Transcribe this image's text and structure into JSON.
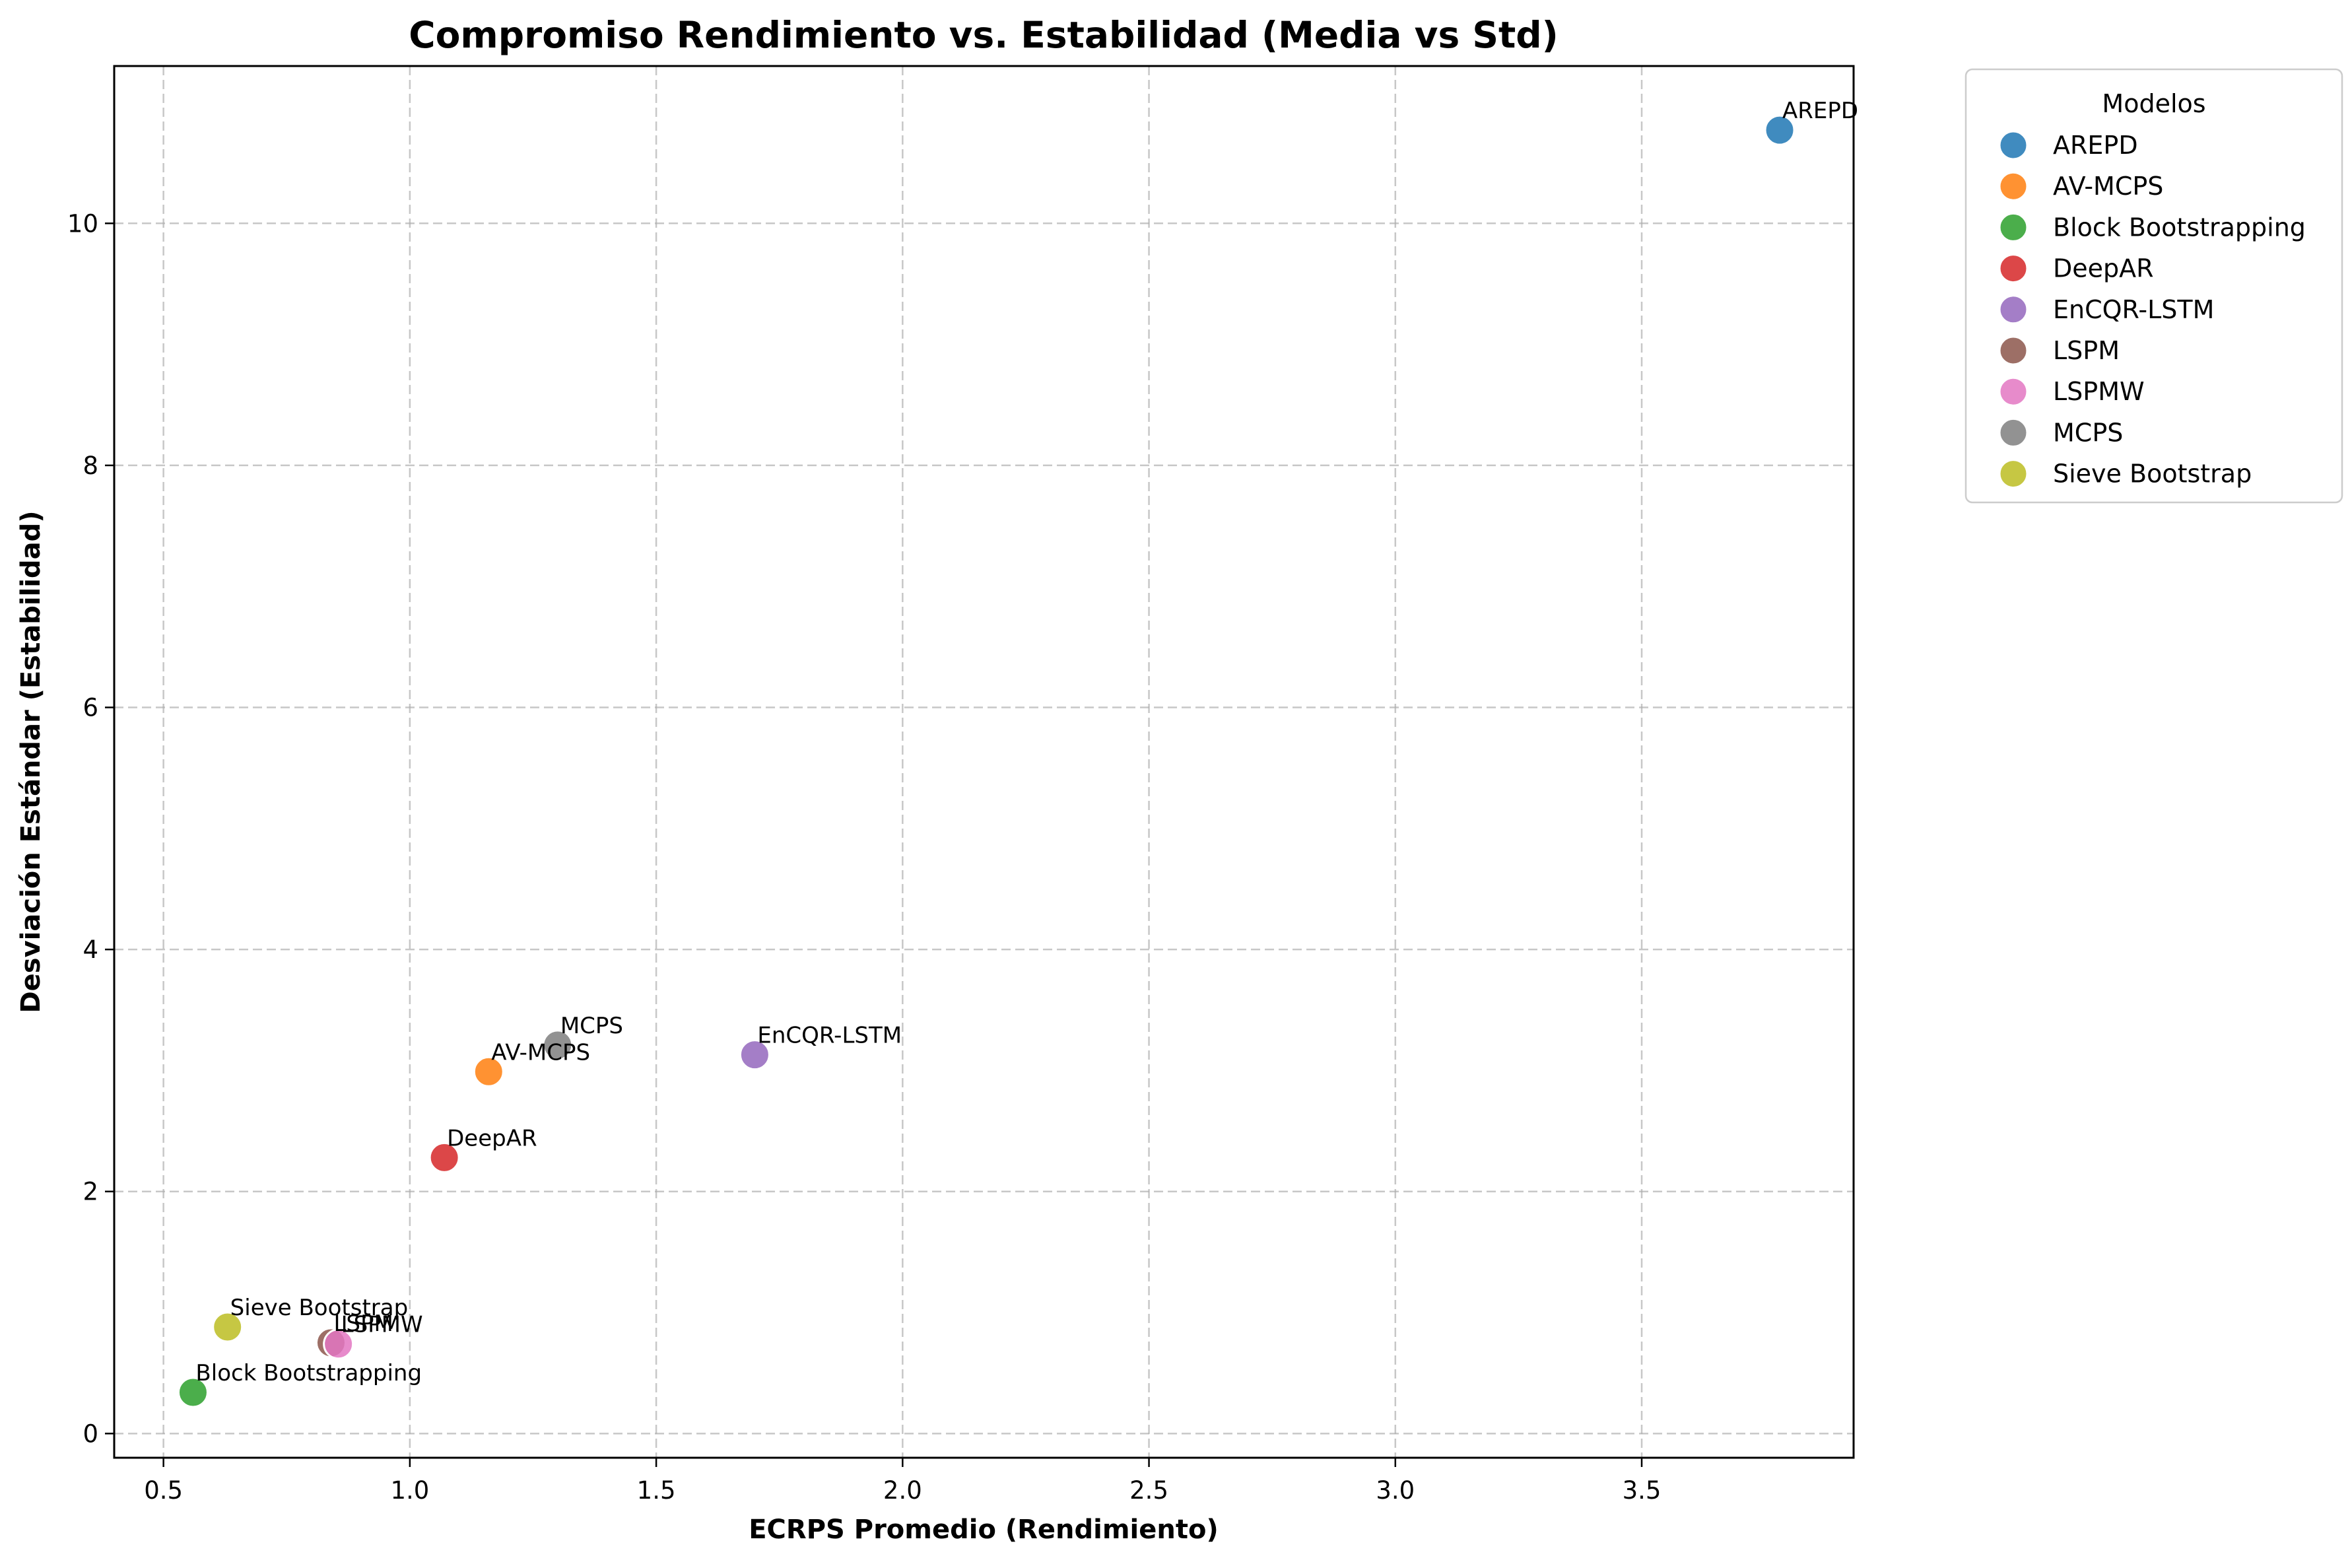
{
  "chart_data": {
    "type": "scatter",
    "title": "Compromiso Rendimiento vs. Estabilidad (Media vs Std)",
    "xlabel": "ECRPS Promedio (Rendimiento)",
    "ylabel": "Desviación Estándar (Estabilidad)",
    "xlim": [
      0.4,
      3.93
    ],
    "ylim": [
      -0.2,
      11.3
    ],
    "xticks": [
      "0.5",
      "1.0",
      "1.5",
      "2.0",
      "2.5",
      "3.0",
      "3.5"
    ],
    "xtick_values": [
      0.5,
      1.0,
      1.5,
      2.0,
      2.5,
      3.0,
      3.5
    ],
    "yticks": [
      "0",
      "2",
      "4",
      "6",
      "8",
      "10"
    ],
    "ytick_values": [
      0,
      2,
      4,
      6,
      8,
      10
    ],
    "grid": true,
    "legend": {
      "title": "Modelos",
      "placement": "outside-right-top"
    },
    "series": [
      {
        "name": "AREPD",
        "color": "#1f77b4",
        "x": 3.78,
        "y": 10.77
      },
      {
        "name": "AV-MCPS",
        "color": "#ff7f0e",
        "x": 1.16,
        "y": 2.99
      },
      {
        "name": "Block Bootstrapping",
        "color": "#2ca02c",
        "x": 0.56,
        "y": 0.34
      },
      {
        "name": "DeepAR",
        "color": "#d62728",
        "x": 1.07,
        "y": 2.28
      },
      {
        "name": "EnCQR-LSTM",
        "color": "#9467bd",
        "x": 1.7,
        "y": 3.13
      },
      {
        "name": "LSPM",
        "color": "#8c564b",
        "x": 0.84,
        "y": 0.75
      },
      {
        "name": "LSPMW",
        "color": "#e377c2",
        "x": 0.855,
        "y": 0.74
      },
      {
        "name": "MCPS",
        "color": "#7f7f7f",
        "x": 1.3,
        "y": 3.21
      },
      {
        "name": "Sieve Bootstrap",
        "color": "#bcbd22",
        "x": 0.63,
        "y": 0.88
      }
    ]
  }
}
